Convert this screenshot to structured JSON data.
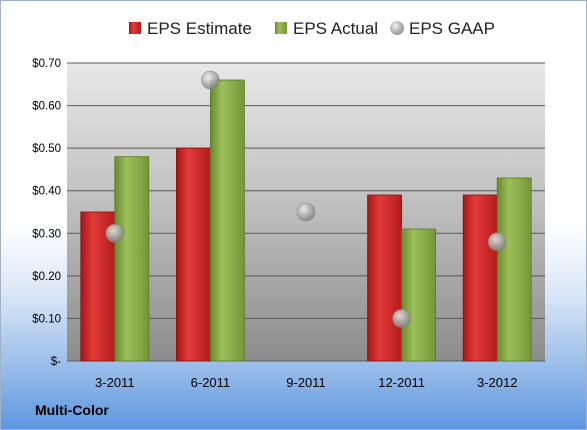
{
  "company": "Multi-Color",
  "colors": {
    "estimate": "#d92b2b",
    "actual": "#8fb04a",
    "gaap": "#a9a9a9",
    "plot_bg_top": "#e6e6e6",
    "plot_bg_bottom": "#8a8a8a"
  },
  "chart_data": {
    "type": "bar",
    "categories": [
      "3-2011",
      "6-2011",
      "9-2011",
      "12-2011",
      "3-2012"
    ],
    "series": [
      {
        "name": "EPS Estimate",
        "mark": "bar",
        "values": [
          0.35,
          0.5,
          null,
          0.39,
          0.39
        ]
      },
      {
        "name": "EPS Actual",
        "mark": "bar",
        "values": [
          0.48,
          0.66,
          null,
          0.31,
          0.43
        ]
      },
      {
        "name": "EPS GAAP",
        "mark": "point",
        "values": [
          0.3,
          0.66,
          0.35,
          0.1,
          0.28
        ]
      }
    ],
    "ylim": [
      0,
      0.7
    ],
    "yticks": [
      0,
      0.1,
      0.2,
      0.3,
      0.4,
      0.5,
      0.6,
      0.7
    ],
    "ytick_labels": [
      "$-",
      "$0.10",
      "$0.20",
      "$0.30",
      "$0.40",
      "$0.50",
      "$0.60",
      "$0.70"
    ],
    "legend_position": "top",
    "grid": true
  }
}
